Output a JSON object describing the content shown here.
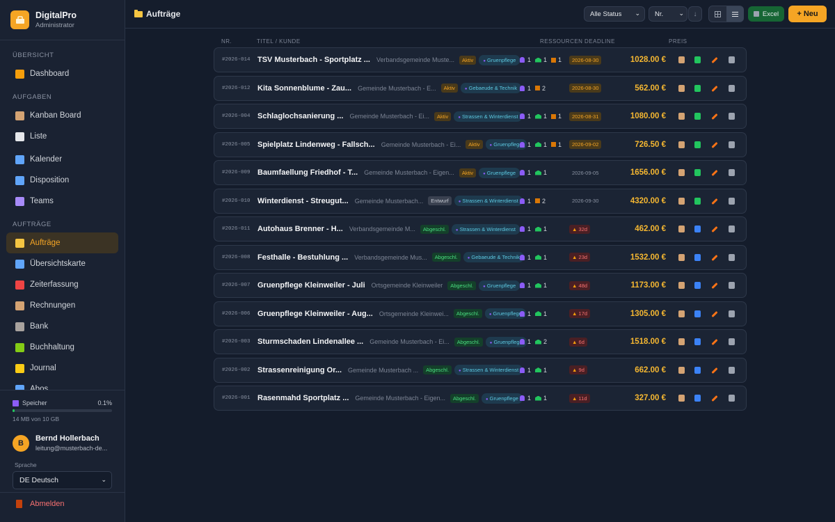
{
  "app": {
    "name": "DigitalPro",
    "role": "Administrator"
  },
  "nav": {
    "sec_overview": "ÜBERSICHT",
    "sec_tasks": "AUFGABEN",
    "sec_orders": "AUFTRÄGE",
    "items": [
      {
        "label": "Dashboard",
        "icon": "bar-chart-icon"
      },
      {
        "label": "Kanban Board",
        "icon": "clipboard-icon"
      },
      {
        "label": "Liste",
        "icon": "document-icon"
      },
      {
        "label": "Kalender",
        "icon": "calendar-icon"
      },
      {
        "label": "Disposition",
        "icon": "calendar-icon"
      },
      {
        "label": "Teams",
        "icon": "people-icon"
      },
      {
        "label": "Aufträge",
        "icon": "folder-icon"
      },
      {
        "label": "Übersichtskarte",
        "icon": "map-icon"
      },
      {
        "label": "Zeiterfassung",
        "icon": "alarm-clock-icon"
      },
      {
        "label": "Rechnungen",
        "icon": "receipt-icon"
      },
      {
        "label": "Bank",
        "icon": "bank-icon"
      },
      {
        "label": "Buchhaltung",
        "icon": "books-icon"
      },
      {
        "label": "Journal",
        "icon": "notebook-icon"
      },
      {
        "label": "Abos",
        "icon": "repeat-icon"
      }
    ]
  },
  "storage": {
    "label": "Speicher",
    "percent": "0.1%",
    "fill": 0.001,
    "detail": "14 MB von 10 GB"
  },
  "user": {
    "initial": "B",
    "name": "Bernd Hollerbach",
    "email": "leitung@musterbach-de..."
  },
  "language": {
    "label": "Sprache",
    "value": "DE Deutsch"
  },
  "logout": "Abmelden",
  "page": {
    "title": "Aufträge"
  },
  "toolbar": {
    "status": "Alle Status",
    "sort": "Nr.",
    "sort_dir": "↓",
    "excel": "Excel",
    "new": "+ Neu"
  },
  "columns": {
    "nr": "NR.",
    "title": "TITEL / KUNDE",
    "resources": "RESSOURCEN",
    "deadline": "DEADLINE",
    "price": "PREIS"
  },
  "colors": {
    "accent": "#f5a524",
    "active": "#f5a524",
    "draft": "#9ca3af",
    "done": "#22c55e",
    "overdue": "#f87171"
  },
  "orders": [
    {
      "nr": "#2026-014",
      "title": "TSV Musterbach - Sportplatz ...",
      "customer": "Verbandsgemeinde Muste...",
      "status": "Aktiv",
      "tag": "Gruenpflege",
      "r": [
        "1",
        "1",
        "1"
      ],
      "deadline": "2026-08-30",
      "dtype": "due",
      "price": "1028.00 €"
    },
    {
      "nr": "#2026-012",
      "title": "Kita Sonnenblume - Zau...",
      "customer": "Gemeinde Musterbach - E...",
      "status": "Aktiv",
      "tag": "Gebaeude & Technik",
      "r": [
        "1",
        "",
        "2"
      ],
      "deadline": "2026-08-30",
      "dtype": "due",
      "price": "562.00 €"
    },
    {
      "nr": "#2026-004",
      "title": "Schlaglochsanierung ...",
      "customer": "Gemeinde Musterbach - Ei...",
      "status": "Aktiv",
      "tag": "Strassen & Winterdienst",
      "r": [
        "1",
        "1",
        "1"
      ],
      "deadline": "2026-08-31",
      "dtype": "due",
      "price": "1080.00 €"
    },
    {
      "nr": "#2026-005",
      "title": "Spielplatz Lindenweg - Fallsch...",
      "customer": "Gemeinde Musterbach - Ei...",
      "status": "Aktiv",
      "tag": "Gruenpflege",
      "r": [
        "1",
        "1",
        "1"
      ],
      "deadline": "2026-09-02",
      "dtype": "due",
      "price": "726.50 €"
    },
    {
      "nr": "#2026-009",
      "title": "Baumfaellung Friedhof - T...",
      "customer": "Gemeinde Musterbach - Eigen...",
      "status": "Aktiv",
      "tag": "Gruenpflege",
      "r": [
        "1",
        "1",
        ""
      ],
      "deadline": "2026-09-05",
      "dtype": "plain",
      "price": "1656.00 €"
    },
    {
      "nr": "#2026-010",
      "title": "Winterdienst - Streugut...",
      "customer": "Gemeinde Musterbach...",
      "status": "Entwurf",
      "tag": "Strassen & Winterdienst",
      "r": [
        "1",
        "",
        "2"
      ],
      "deadline": "2026-09-30",
      "dtype": "plain",
      "price": "4320.00 €"
    },
    {
      "nr": "#2026-011",
      "title": "Autohaus Brenner - H...",
      "customer": "Verbandsgemeinde M...",
      "status": "Abgeschl.",
      "tag": "Strassen & Winterdienst",
      "r": [
        "1",
        "1",
        ""
      ],
      "deadline": "32d",
      "dtype": "late",
      "price": "462.00 €"
    },
    {
      "nr": "#2026-008",
      "title": "Festhalle - Bestuhlung ...",
      "customer": "Verbandsgemeinde Mus...",
      "status": "Abgeschl.",
      "tag": "Gebaeude & Technik",
      "r": [
        "1",
        "1",
        ""
      ],
      "deadline": "23d",
      "dtype": "late",
      "price": "1532.00 €"
    },
    {
      "nr": "#2026-007",
      "title": "Gruenpflege Kleinweiler - Juli",
      "customer": "Ortsgemeinde Kleinweiler",
      "status": "Abgeschl.",
      "tag": "Gruenpflege",
      "r": [
        "1",
        "1",
        ""
      ],
      "deadline": "48d",
      "dtype": "late",
      "price": "1173.00 €"
    },
    {
      "nr": "#2026-006",
      "title": "Gruenpflege Kleinweiler - Aug...",
      "customer": "Ortsgemeinde Kleinwei...",
      "status": "Abgeschl.",
      "tag": "Gruenpflege",
      "r": [
        "1",
        "1",
        ""
      ],
      "deadline": "17d",
      "dtype": "late",
      "price": "1305.00 €"
    },
    {
      "nr": "#2026-003",
      "title": "Sturmschaden Lindenallee ...",
      "customer": "Gemeinde Musterbach - Ei...",
      "status": "Abgeschl.",
      "tag": "Gruenpflege",
      "r": [
        "1",
        "2",
        ""
      ],
      "deadline": "6d",
      "dtype": "late",
      "price": "1518.00 €"
    },
    {
      "nr": "#2026-002",
      "title": "Strassenreinigung Or...",
      "customer": "Gemeinde Musterbach ...",
      "status": "Abgeschl.",
      "tag": "Strassen & Winterdienst",
      "r": [
        "1",
        "1",
        ""
      ],
      "deadline": "9d",
      "dtype": "late",
      "price": "662.00 €"
    },
    {
      "nr": "#2026-001",
      "title": "Rasenmahd Sportplatz ...",
      "customer": "Gemeinde Musterbach - Eigen...",
      "status": "Abgeschl.",
      "tag": "Gruenpflege",
      "r": [
        "1",
        "1",
        ""
      ],
      "deadline": "11d",
      "dtype": "late",
      "price": "327.00 €"
    }
  ]
}
